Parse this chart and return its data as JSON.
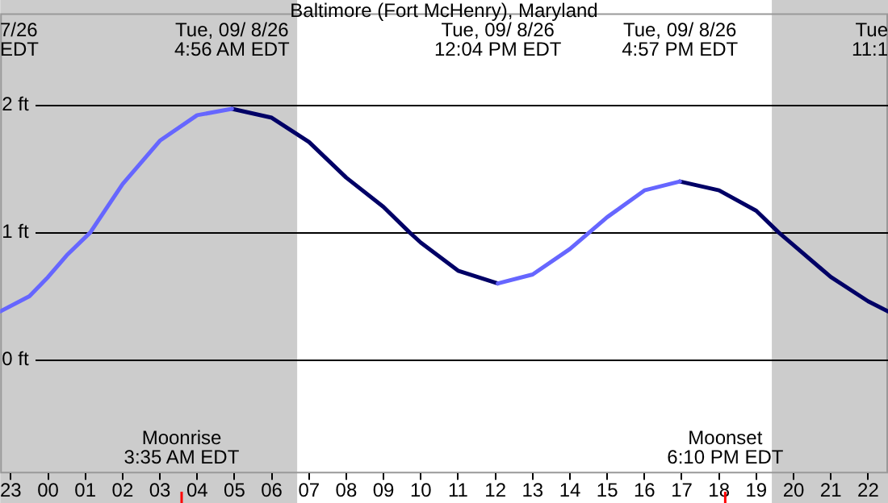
{
  "chart_data": {
    "type": "line",
    "title": "Baltimore (Fort McHenry), Maryland",
    "annotations": [
      "7/26\nEDT",
      "Tue, 09/ 8/26\n4:56 AM EDT",
      "Tue, 09/ 8/26\n12:04 PM EDT",
      "Tue, 09/ 8/26\n4:57 PM EDT",
      "Tue\n11:1"
    ],
    "series": [
      {
        "color": "#6666ff",
        "x": [
          "--09-07T22:43",
          "--09-07T23:30",
          "--09-08T00:00",
          "--09-08T00:30",
          "--09-08T01:08",
          "--09-08T02:00",
          "--09-08T03:00",
          "--09-08T04:00",
          "--09-08T04:56",
          "--09-08T05:30",
          "--09-08T12:04",
          "--09-08T13:00",
          "--09-08T14:00",
          "--09-08T15:00",
          "--09-08T16:00",
          "--09-08T16:57"
        ],
        "values": [
          0.38,
          0.5,
          0.65,
          0.82,
          1.0,
          1.38,
          1.72,
          1.92,
          1.97,
          null,
          0.6,
          0.67,
          0.87,
          1.12,
          1.33,
          1.4
        ]
      },
      {
        "color": "#000066",
        "x": [
          "--09-08T04:56",
          "--09-08T06:00",
          "--09-08T07:00",
          "--09-08T08:00",
          "--09-08T09:00",
          "--09-08T09:42",
          "--09-08T10:00",
          "--09-08T11:00",
          "--09-08T12:04",
          "--09-08T14:00",
          "--09-08T16:57",
          "--09-08T18:00",
          "--09-08T19:00",
          "--09-08T19:36",
          "--09-08T20:00",
          "--09-08T21:00",
          "--09-08T22:00",
          "--09-08T22:32"
        ],
        "values": [
          1.97,
          1.9,
          1.71,
          1.43,
          1.2,
          1.0,
          0.92,
          0.7,
          0.6,
          null,
          1.4,
          1.33,
          1.17,
          1.0,
          0.9,
          0.65,
          0.46,
          0.38
        ]
      }
    ],
    "bands": [
      {
        "axis": "x",
        "from": "--09-07T22:43",
        "to": "--09-08T06:41",
        "color": "#cccccc"
      },
      {
        "axis": "x",
        "from": "--09-08T19:25",
        "to": "--09-08T22:32",
        "color": "#cccccc"
      }
    ],
    "ref_lines": [
      {
        "axis": "x",
        "value": "--09-08T03:35",
        "label": "Moonrise\n3:35 AM EDT",
        "color": "#ff0000"
      },
      {
        "axis": "x",
        "value": "--09-08T18:10",
        "label": "Moonset\n6:10 PM EDT",
        "color": "#ff0000"
      }
    ],
    "xlim": [
      "--09-07T22:43",
      "--09-08T22:32"
    ],
    "ylim": [
      -0.89,
      2.72
    ],
    "xticks": [
      {
        "value": "--09-07T23:00",
        "label": "23"
      },
      {
        "value": "--09-08T00:00",
        "label": "00"
      },
      {
        "value": "--09-08T01:00",
        "label": "01"
      },
      {
        "value": "--09-08T02:00",
        "label": "02"
      },
      {
        "value": "--09-08T03:00",
        "label": "03"
      },
      {
        "value": "--09-08T04:00",
        "label": "04"
      },
      {
        "value": "--09-08T05:00",
        "label": "05"
      },
      {
        "value": "--09-08T06:00",
        "label": "06"
      },
      {
        "value": "--09-08T07:00",
        "label": "07"
      },
      {
        "value": "--09-08T08:00",
        "label": "08"
      },
      {
        "value": "--09-08T09:00",
        "label": "09"
      },
      {
        "value": "--09-08T10:00",
        "label": "10"
      },
      {
        "value": "--09-08T11:00",
        "label": "11"
      },
      {
        "value": "--09-08T12:00",
        "label": "12"
      },
      {
        "value": "--09-08T13:00",
        "label": "13"
      },
      {
        "value": "--09-08T14:00",
        "label": "14"
      },
      {
        "value": "--09-08T15:00",
        "label": "15"
      },
      {
        "value": "--09-08T16:00",
        "label": "16"
      },
      {
        "value": "--09-08T17:00",
        "label": "17"
      },
      {
        "value": "--09-08T18:00",
        "label": "18"
      },
      {
        "value": "--09-08T19:00",
        "label": "19"
      },
      {
        "value": "--09-08T20:00",
        "label": "20"
      },
      {
        "value": "--09-08T21:00",
        "label": "21"
      },
      {
        "value": "--09-08T22:00",
        "label": "22"
      }
    ],
    "yticks": [
      {
        "value": 0,
        "label": "0 ft"
      },
      {
        "value": 1,
        "label": "1 ft"
      },
      {
        "value": 2,
        "label": "2 ft"
      }
    ],
    "grid": "y"
  }
}
